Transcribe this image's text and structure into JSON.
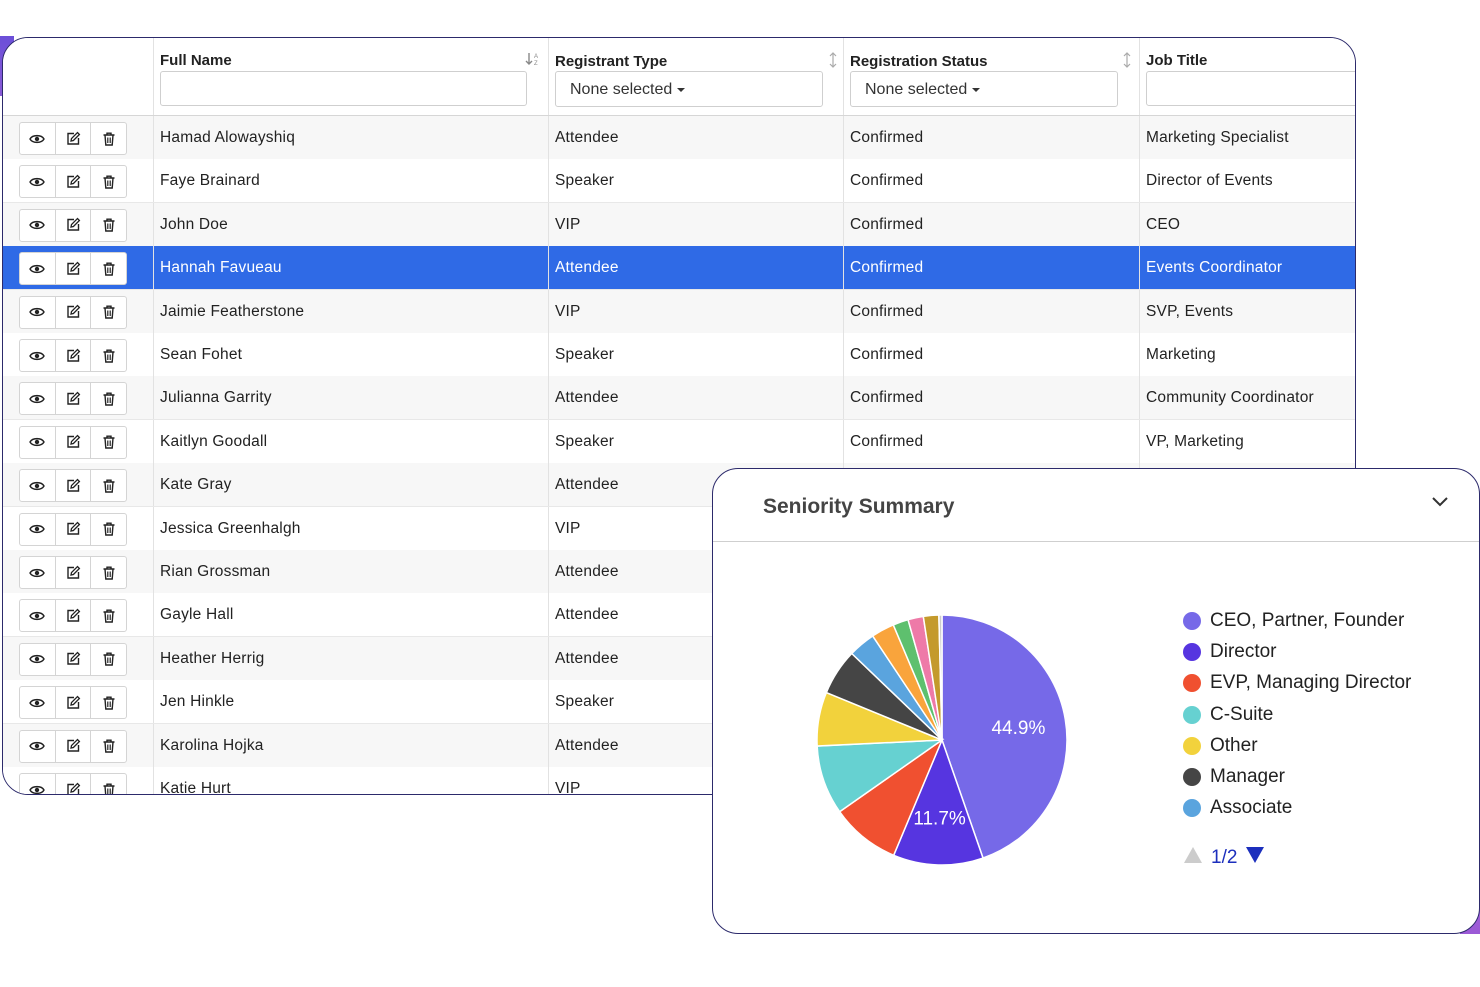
{
  "table": {
    "columns": [
      {
        "label": "Full Name",
        "filter_type": "text",
        "filter_value": ""
      },
      {
        "label": "Registrant Type",
        "filter_type": "select",
        "filter_value": "None selected"
      },
      {
        "label": "Registration Status",
        "filter_type": "select",
        "filter_value": "None selected"
      },
      {
        "label": "Job Title",
        "filter_type": "text",
        "filter_value": ""
      }
    ],
    "selected_row": 3,
    "rows": [
      {
        "name": "Hamad Alowayshiq",
        "type": "Attendee",
        "status": "Confirmed",
        "title": "Marketing Specialist"
      },
      {
        "name": "Faye Brainard",
        "type": "Speaker",
        "status": "Confirmed",
        "title": "Director of Events"
      },
      {
        "name": "John Doe",
        "type": "VIP",
        "status": "Confirmed",
        "title": "CEO"
      },
      {
        "name": "Hannah Favueau",
        "type": "Attendee",
        "status": "Confirmed",
        "title": "Events Coordinator"
      },
      {
        "name": "Jaimie Featherstone",
        "type": "VIP",
        "status": "Confirmed",
        "title": "SVP, Events"
      },
      {
        "name": "Sean Fohet",
        "type": "Speaker",
        "status": "Confirmed",
        "title": "Marketing"
      },
      {
        "name": "Julianna Garrity",
        "type": "Attendee",
        "status": "Confirmed",
        "title": "Community Coordinator"
      },
      {
        "name": "Kaitlyn Goodall",
        "type": "Speaker",
        "status": "Confirmed",
        "title": "VP, Marketing"
      },
      {
        "name": "Kate Gray",
        "type": "Attendee",
        "status": "",
        "title": ""
      },
      {
        "name": "Jessica Greenhalgh",
        "type": "VIP",
        "status": "",
        "title": ""
      },
      {
        "name": "Rian Grossman",
        "type": "Attendee",
        "status": "",
        "title": ""
      },
      {
        "name": "Gayle Hall",
        "type": "Attendee",
        "status": "",
        "title": ""
      },
      {
        "name": "Heather Herrig",
        "type": "Attendee",
        "status": "",
        "title": ""
      },
      {
        "name": "Jen Hinkle",
        "type": "Speaker",
        "status": "",
        "title": ""
      },
      {
        "name": "Karolina Hojka",
        "type": "Attendee",
        "status": "",
        "title": ""
      },
      {
        "name": "Katie Hurt",
        "type": "VIP",
        "status": "",
        "title": ""
      }
    ],
    "row_actions": [
      "eye-icon",
      "edit-icon",
      "trash-icon"
    ],
    "selected_color": "#2f6ae6"
  },
  "summary": {
    "title": "Seniority Summary",
    "collapse_icon": "chevron-down-icon",
    "pager": {
      "label": "1/2",
      "up_icon": "triangle-up-icon",
      "down_icon": "triangle-down-icon"
    }
  },
  "chart_data": {
    "type": "pie",
    "title": "Seniority Summary",
    "legend_position": "right",
    "slices": [
      {
        "label": "CEO, Partner, Founder",
        "value": 44.9,
        "color": "#7669e8",
        "data_label": "44.9%"
      },
      {
        "label": "Director",
        "value": 11.7,
        "color": "#5635e0",
        "data_label": "11.7%"
      },
      {
        "label": "EVP, Managing Director",
        "value": 9.0,
        "color": "#f05030",
        "data_label": ""
      },
      {
        "label": "C-Suite",
        "value": 9.0,
        "color": "#66d1d1",
        "data_label": ""
      },
      {
        "label": "Other",
        "value": 7.0,
        "color": "#f2d23c",
        "data_label": ""
      },
      {
        "label": "Manager",
        "value": 6.0,
        "color": "#454545",
        "data_label": ""
      },
      {
        "label": "Associate",
        "value": 3.5,
        "color": "#5aa4de",
        "data_label": ""
      },
      {
        "label": "",
        "value": 3.0,
        "color": "#f9a43c",
        "data_label": ""
      },
      {
        "label": "",
        "value": 2.0,
        "color": "#5ec06e",
        "data_label": ""
      },
      {
        "label": "",
        "value": 2.0,
        "color": "#ee7aa8",
        "data_label": ""
      },
      {
        "label": "",
        "value": 2.0,
        "color": "#c49a2c",
        "data_label": ""
      },
      {
        "label": "",
        "value": 0.4,
        "color": "#cccccc",
        "data_label": ""
      }
    ],
    "legend_visible_count": 7
  }
}
